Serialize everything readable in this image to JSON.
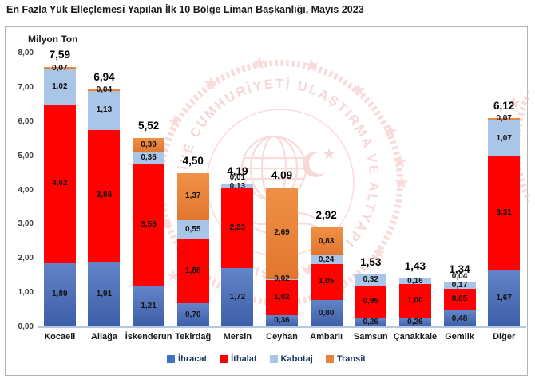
{
  "title": "En Fazla Yük Elleçlemesi Yapılan İlk 10 Bölge Liman Başkanlığı, Mayıs 2023",
  "watermark_text": "TÜRKİYE CUMHURİYETİ ULAŞTIRMA VE ALTYAPI BAKANLIĞI",
  "chart_data": {
    "type": "bar",
    "stacked": true,
    "title": "En Fazla Yük Elleçlemesi Yapılan İlk 10 Bölge Liman Başkanlığı, Mayıs 2023",
    "ylabel": "Milyon Ton",
    "xlabel": "",
    "ylim": [
      0,
      8
    ],
    "ytick_step": 1,
    "ytick_labels": [
      "0,00",
      "1,00",
      "2,00",
      "3,00",
      "4,00",
      "5,00",
      "6,00",
      "7,00",
      "8,00"
    ],
    "grid": false,
    "legend_position": "bottom",
    "categories": [
      "Kocaeli",
      "Aliağa",
      "İskenderun",
      "Tekirdağ",
      "Mersin",
      "Ceyhan",
      "Ambarlı",
      "Samsun",
      "Çanakkale",
      "Gemlik",
      "Diğer"
    ],
    "series": [
      {
        "name": "İhracat",
        "key": "ihracat",
        "color": "#4472c4",
        "values": [
          1.89,
          1.91,
          1.21,
          0.7,
          1.72,
          0.36,
          0.8,
          0.26,
          0.26,
          0.48,
          1.67
        ]
      },
      {
        "name": "İthalat",
        "key": "ithalat",
        "color": "#fe0101",
        "values": [
          4.62,
          3.86,
          3.56,
          1.88,
          2.33,
          1.02,
          1.05,
          0.95,
          1.0,
          0.65,
          3.31
        ]
      },
      {
        "name": "Kabotaj",
        "key": "kabotaj",
        "color": "#a9c6e8",
        "values": [
          1.02,
          1.13,
          0.36,
          0.55,
          0.13,
          0.02,
          0.24,
          0.32,
          0.16,
          0.17,
          1.07
        ]
      },
      {
        "name": "Transit",
        "key": "transit",
        "color": "#e8843e",
        "values": [
          0.07,
          0.04,
          0.39,
          1.37,
          0.01,
          2.69,
          0.83,
          0,
          0,
          0.04,
          0.07
        ]
      }
    ],
    "totals": [
      "7,59",
      "6,94",
      "5,52",
      "4,50",
      "4,19",
      "4,09",
      "2,92",
      "1,53",
      "1,43",
      "1,34",
      "6,12"
    ]
  }
}
